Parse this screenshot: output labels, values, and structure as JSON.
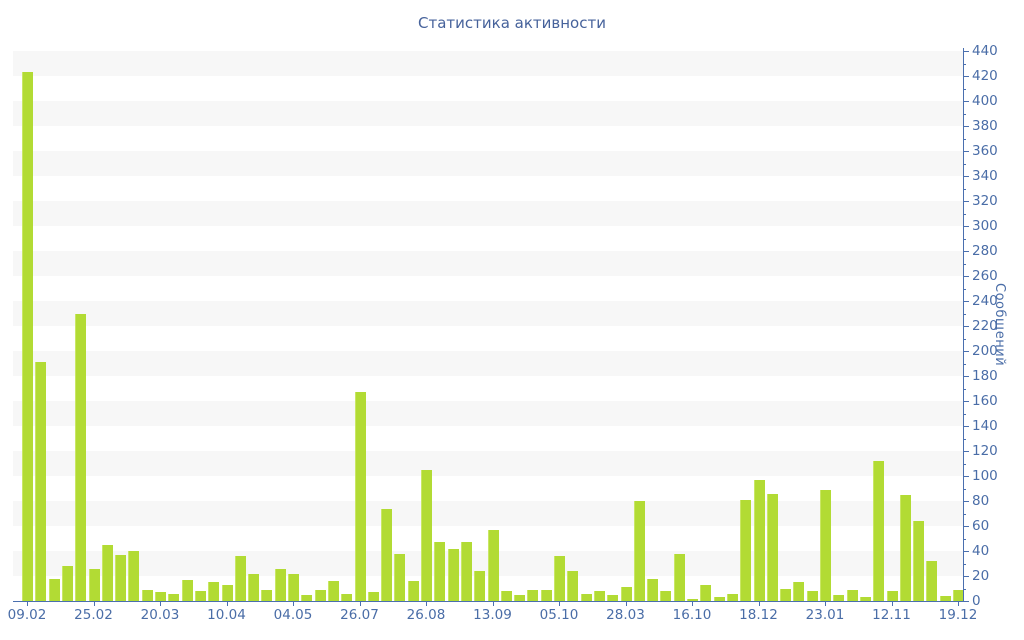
{
  "chart_data": {
    "type": "bar",
    "title": "Статистика активности",
    "ylabel": "Сообщений",
    "xlabel": "",
    "ylim": [
      0,
      440
    ],
    "y_tick_step": 20,
    "y_minor_tick_step": 10,
    "grid": "striped-horizontal-bands",
    "legend": "none",
    "x_tick_every": 5,
    "x_tick_labels": [
      "09.02",
      "25.02",
      "20.03",
      "10.04",
      "04.05",
      "26.07",
      "26.08",
      "13.09",
      "05.10",
      "28.03",
      "16.10",
      "18.12",
      "23.01",
      "12.11",
      "19.12"
    ],
    "values": [
      423,
      191,
      18,
      28,
      230,
      26,
      45,
      37,
      40,
      9,
      7,
      6,
      17,
      8,
      15,
      13,
      36,
      22,
      9,
      26,
      22,
      5,
      9,
      16,
      6,
      167,
      7,
      74,
      38,
      16,
      105,
      47,
      42,
      47,
      24,
      57,
      8,
      5,
      9,
      9,
      36,
      24,
      6,
      8,
      5,
      11,
      80,
      18,
      8,
      38,
      2,
      13,
      3,
      6,
      81,
      97,
      86,
      10,
      15,
      8,
      89,
      5,
      9,
      3,
      112,
      8,
      85,
      64,
      32,
      4,
      9
    ]
  },
  "colors": {
    "bar": "#b2db34",
    "bar_edge": "#c9e765",
    "axis": "#4a6fae",
    "label": "#4a6da7",
    "title": "#46629b",
    "stripe": "#f7f7f7",
    "background": "#ffffff"
  }
}
